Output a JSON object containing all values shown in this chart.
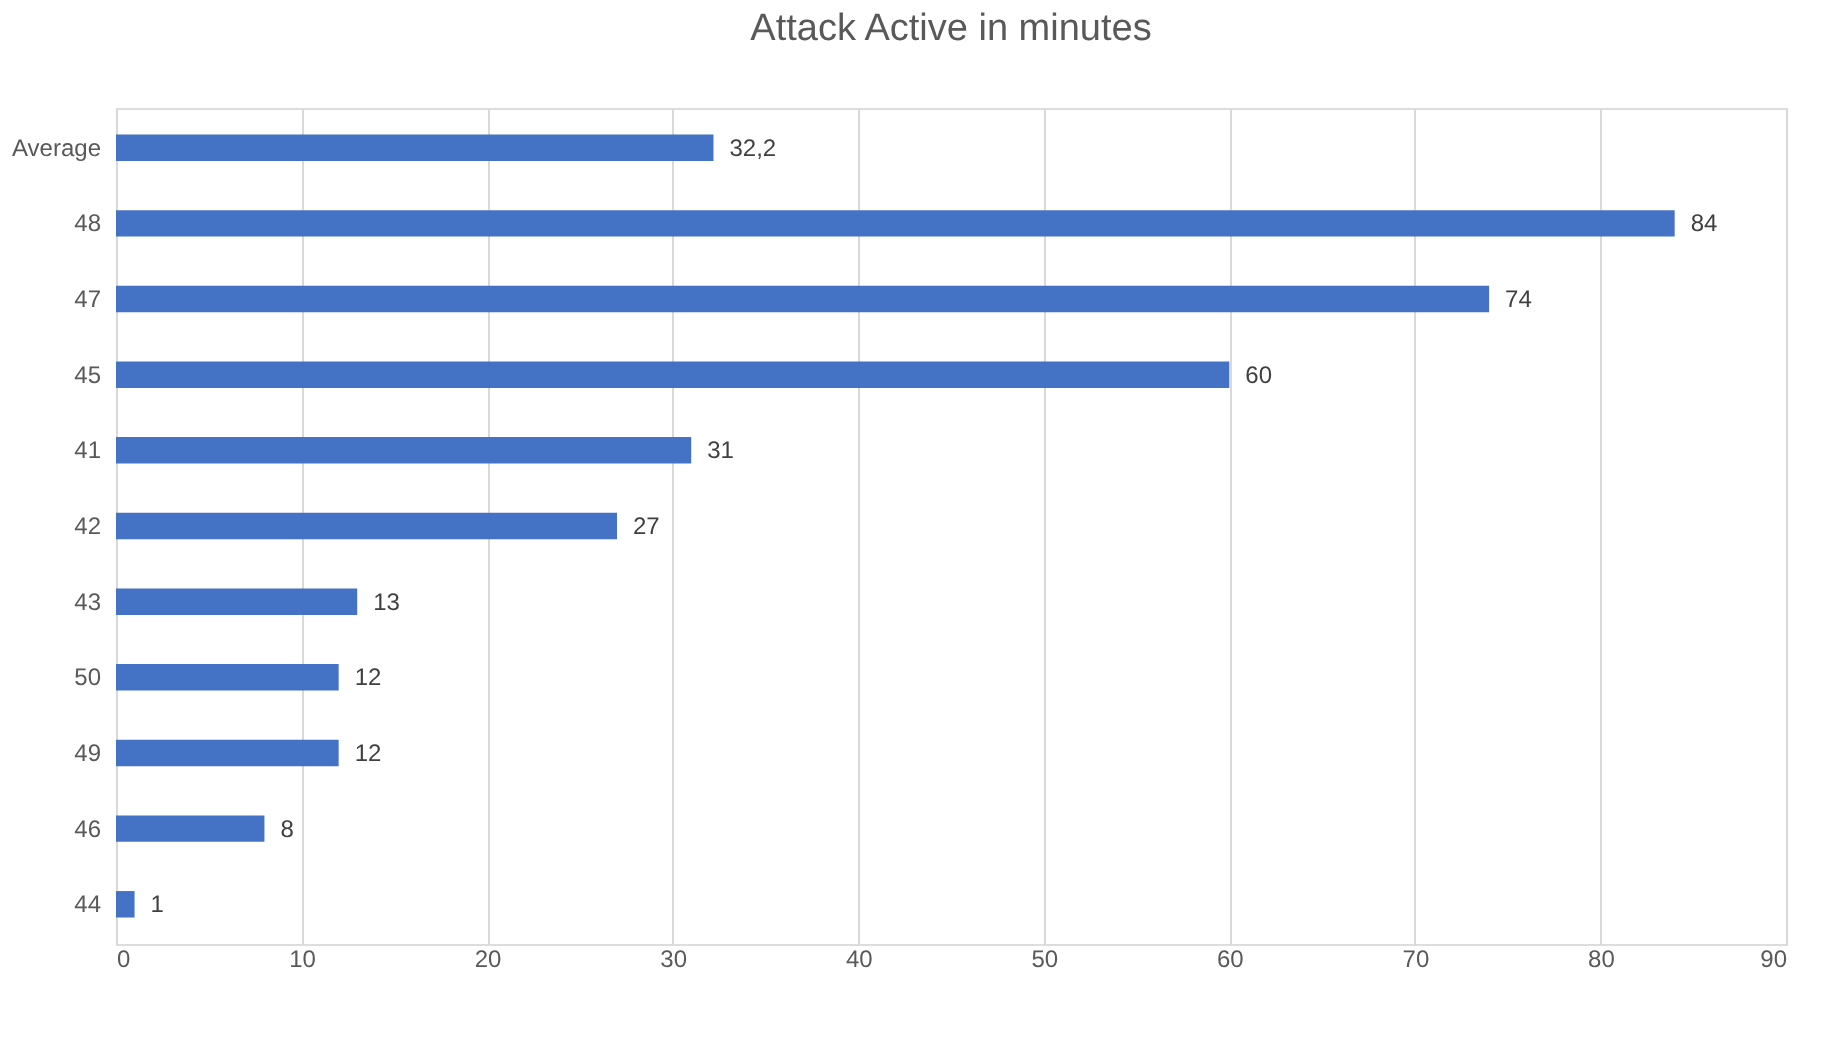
{
  "chart_data": {
    "type": "bar",
    "title": "Attack Active in minutes",
    "orientation": "horizontal",
    "categories": [
      "Average",
      "48",
      "47",
      "45",
      "41",
      "42",
      "43",
      "50",
      "49",
      "46",
      "44"
    ],
    "values": [
      32.2,
      84,
      74,
      60,
      31,
      27,
      13,
      12,
      12,
      8,
      1
    ],
    "value_labels": [
      "32,2",
      "84",
      "74",
      "60",
      "31",
      "27",
      "13",
      "12",
      "12",
      "8",
      "1"
    ],
    "color": "#4472c4",
    "xlim": [
      0,
      90
    ],
    "xticks": [
      0,
      10,
      20,
      30,
      40,
      50,
      60,
      70,
      80,
      90
    ],
    "grid": "x"
  }
}
